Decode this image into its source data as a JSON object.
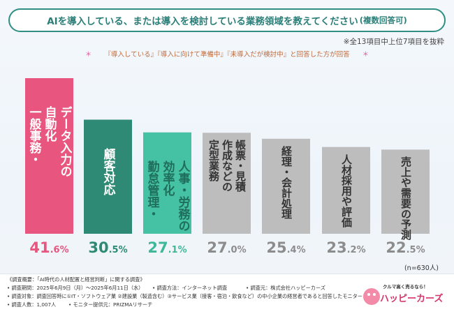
{
  "title": {
    "main": "AIを導入している、または導入を検討している業務領域を教えてください",
    "sub": "(複数回答可)"
  },
  "notes": {
    "top_right": "※全13項目中上位7項目を抜粋",
    "star": "＊",
    "sub_note": "『導入している』『導入に向けて準備中』『未導入だが検討中』と回答した方が回答",
    "n": "(n=630人)"
  },
  "colors": {
    "bar1": "#e8557e",
    "bar2": "#2e8a74",
    "bar3": "#45c1a3",
    "bar_gray": "#bdbdbd",
    "pct1": "#e8557e",
    "pct2": "#2e8a74",
    "pct3": "#3fb89a",
    "pct_gray": "#8c8c8c"
  },
  "chart_data": {
    "type": "bar",
    "title": "AIを導入している、または導入を検討している業務領域を教えてください(複数回答可)",
    "categories": [
      "データ入力の自動化",
      "顧客対応",
      "人事・労務の効率化",
      "帳票・見積作成などの定型業務",
      "経理・会計処理",
      "人材採用や評価",
      "売上や需要の予測"
    ],
    "values": [
      41.6,
      30.5,
      27.1,
      27.0,
      25.4,
      23.2,
      22.5
    ],
    "unit": "%",
    "ylim": [
      0,
      45
    ],
    "label_columns": [
      [
        "データ入力の",
        "自動化",
        "一般事務・"
      ],
      [
        "顧客対応"
      ],
      [
        "人事・労務の",
        "効率化",
        "勤怠管理・"
      ],
      [
        "帳票・見積",
        "作成などの",
        "定型業務"
      ],
      [
        "経理・会計処理"
      ],
      [
        "人材採用や評価"
      ],
      [
        "売上や需要の予測"
      ]
    ],
    "pct_labels": [
      {
        "big": "41",
        "small": ".6%"
      },
      {
        "big": "30",
        "small": ".5%"
      },
      {
        "big": "27",
        "small": ".1%"
      },
      {
        "big": "27",
        "small": ".0%"
      },
      {
        "big": "25",
        "small": ".4%"
      },
      {
        "big": "23",
        "small": ".2%"
      },
      {
        "big": "22",
        "small": ".5%"
      }
    ]
  },
  "footer": {
    "line1": "《調査概要：「AI時代の人材配置と経営判断」に関する調査》",
    "line2a": "• 調査期間：2025年6月9日（月）～2025年6月11日（水）",
    "line2b": "• 調査方法：インターネット調査",
    "line2c": "• 調査元：株式会社ハッピーカーズ",
    "line3": "• 調査対象：調査回答時に①IT・ソフトウェア業 ②建設業（製造含む）③サービス業（接客・宿泊・飲食など）の中小企業の経営者であると回答したモニター",
    "line4a": "• 調査人数：1,007人",
    "line4b": "• モニター提供元：PRIZMAリサーチ",
    "logo_tag": "クルマ高く売るなら！",
    "logo_name": "ハッピーカーズ"
  }
}
